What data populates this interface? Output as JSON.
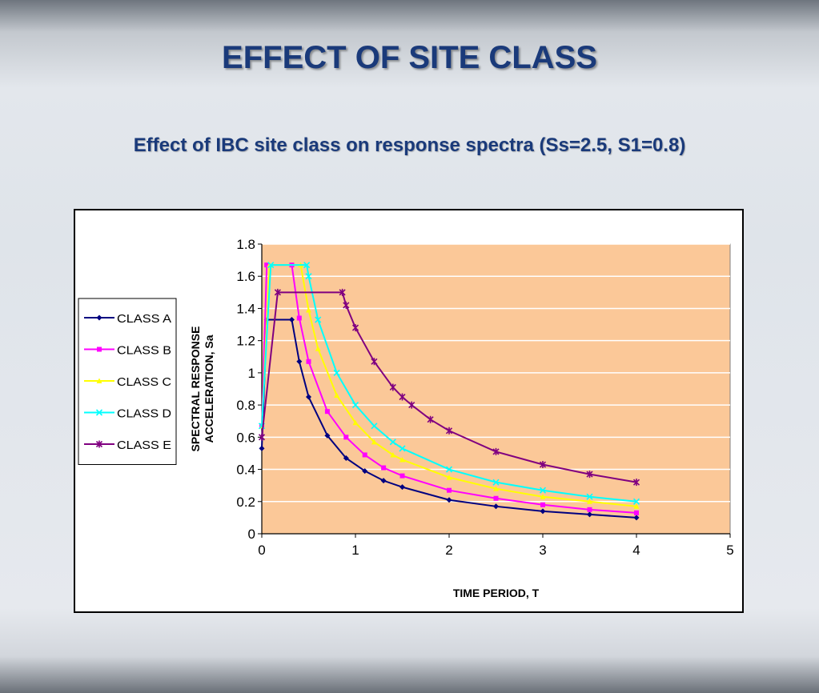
{
  "slide": {
    "title": "EFFECT OF SITE CLASS",
    "subtitle": "Effect of IBC site class on response spectra (Ss=2.5, S1=0.8)"
  },
  "chart_data": {
    "type": "line",
    "title": "",
    "xlabel": "TIME PERIOD, T",
    "ylabel_lines": [
      "SPECTRAL RESPONSE",
      "ACCELERATION, Sa"
    ],
    "xlim": [
      0,
      5
    ],
    "ylim": [
      0,
      1.8
    ],
    "x_ticks": [
      0,
      1,
      2,
      3,
      4,
      5
    ],
    "y_ticks": [
      0,
      0.2,
      0.4,
      0.6,
      0.8,
      1,
      1.2,
      1.4,
      1.6,
      1.8
    ],
    "y_tick_labels": [
      "0",
      "0.2",
      "0.4",
      "0.6",
      "0.8",
      "1",
      "1.2",
      "1.4",
      "1.6",
      "1.8"
    ],
    "grid": "horizontal",
    "plot_background": "#fbc898",
    "legend_position": "left",
    "series": [
      {
        "name": "CLASS A",
        "color": "#000080",
        "marker": "diamond",
        "x": [
          0,
          0.053,
          0.32,
          0.4,
          0.5,
          0.7,
          0.9,
          1.1,
          1.3,
          1.5,
          2.0,
          2.5,
          3.0,
          3.5,
          4.0
        ],
        "y": [
          0.53,
          1.33,
          1.33,
          1.07,
          0.85,
          0.61,
          0.47,
          0.39,
          0.33,
          0.29,
          0.21,
          0.17,
          0.14,
          0.12,
          0.1
        ]
      },
      {
        "name": "CLASS B",
        "color": "#ff00ff",
        "marker": "square",
        "x": [
          0,
          0.053,
          0.32,
          0.4,
          0.5,
          0.7,
          0.9,
          1.1,
          1.3,
          1.5,
          2.0,
          2.5,
          3.0,
          3.5,
          4.0
        ],
        "y": [
          0.67,
          1.67,
          1.67,
          1.34,
          1.07,
          0.76,
          0.6,
          0.49,
          0.41,
          0.36,
          0.27,
          0.22,
          0.18,
          0.15,
          0.13
        ]
      },
      {
        "name": "CLASS C",
        "color": "#ffff00",
        "marker": "triangle",
        "x": [
          0,
          0.083,
          0.415,
          0.5,
          0.6,
          0.8,
          1.0,
          1.2,
          1.4,
          1.5,
          2.0,
          2.5,
          3.0,
          3.5,
          4.0
        ],
        "y": [
          0.67,
          1.67,
          1.67,
          1.39,
          1.15,
          0.86,
          0.69,
          0.57,
          0.49,
          0.46,
          0.35,
          0.28,
          0.23,
          0.2,
          0.17
        ]
      },
      {
        "name": "CLASS D",
        "color": "#00ffff",
        "marker": "x",
        "x": [
          0,
          0.096,
          0.48,
          0.5,
          0.6,
          0.8,
          1.0,
          1.2,
          1.4,
          1.5,
          2.0,
          2.5,
          3.0,
          3.5,
          4.0
        ],
        "y": [
          0.67,
          1.67,
          1.67,
          1.6,
          1.33,
          1.0,
          0.8,
          0.67,
          0.57,
          0.53,
          0.4,
          0.32,
          0.27,
          0.23,
          0.2
        ]
      },
      {
        "name": "CLASS E",
        "color": "#800080",
        "marker": "star",
        "x": [
          0,
          0.17,
          0.86,
          0.9,
          1.0,
          1.2,
          1.4,
          1.5,
          1.6,
          1.8,
          2.0,
          2.5,
          3.0,
          3.5,
          4.0
        ],
        "y": [
          0.6,
          1.5,
          1.5,
          1.42,
          1.28,
          1.07,
          0.91,
          0.85,
          0.8,
          0.71,
          0.64,
          0.51,
          0.43,
          0.37,
          0.32
        ]
      }
    ]
  }
}
